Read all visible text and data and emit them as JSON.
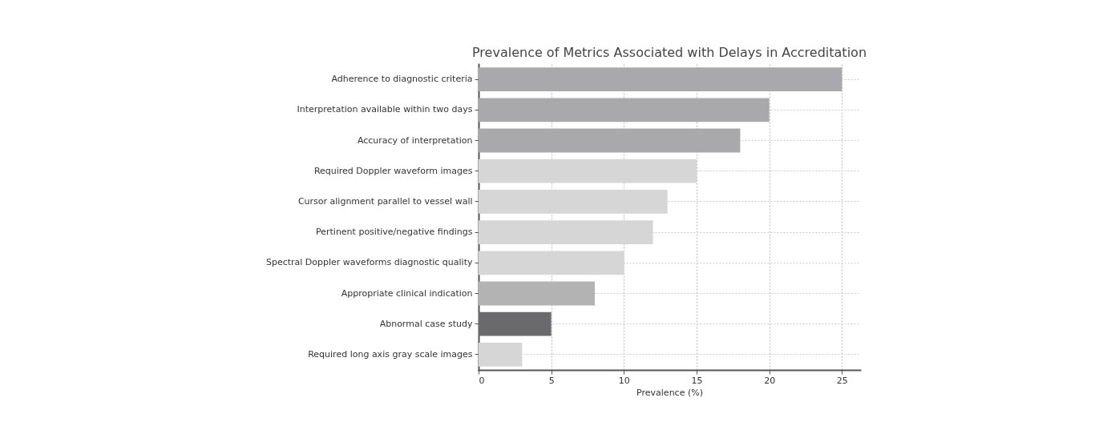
{
  "chart_data": {
    "type": "bar",
    "orientation": "horizontal",
    "title": "Prevalence of Metrics Associated with Delays in Accreditation",
    "xlabel": "Prevalence (%)",
    "categories": [
      "Adherence to diagnostic criteria",
      "Interpretation available within two days",
      "Accuracy of interpretation",
      "Required Doppler waveform images",
      "Cursor alignment parallel to vessel wall",
      "Pertinent positive/negative findings",
      "Spectral Doppler waveforms diagnostic quality",
      "Appropriate clinical indication",
      "Abnormal case study",
      "Required long axis gray scale images"
    ],
    "values": [
      25,
      20,
      18,
      15,
      13,
      12,
      10,
      8,
      5,
      3
    ],
    "colors": [
      "#a9a9ab",
      "#a9a9ab",
      "#a9a9ab",
      "#d6d6d6",
      "#d6d6d6",
      "#d6d6d6",
      "#d6d6d6",
      "#b3b3b3",
      "#6a6a6c",
      "#d6d6d6"
    ],
    "xlim": [
      0,
      26.25
    ],
    "xticks": [
      0,
      5,
      10,
      15,
      20,
      25
    ],
    "grid": true
  }
}
